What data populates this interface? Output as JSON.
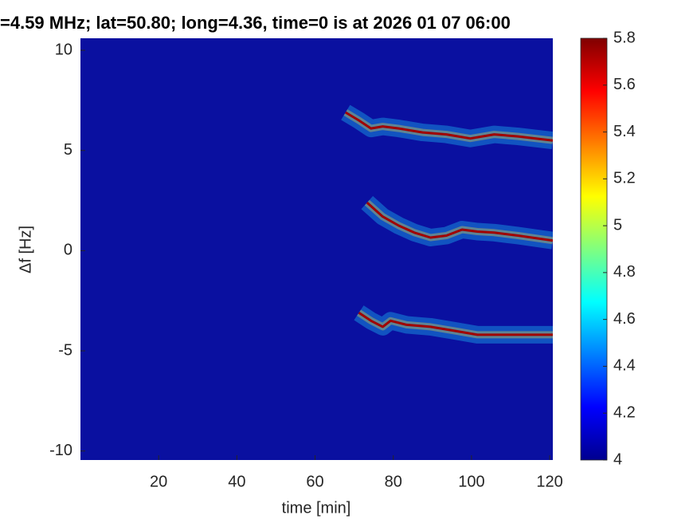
{
  "chart_data": {
    "type": "spectrogram",
    "title": "=4.59 MHz;  lat=50.80; long=4.36, time=0 is at 2026 01 07 06:00",
    "xlabel": "time [min]",
    "ylabel": "Δf [Hz]",
    "xlim": [
      0,
      120.8
    ],
    "xticks": [
      20,
      40,
      60,
      80,
      100,
      120
    ],
    "ylim": [
      -10.45,
      10.6
    ],
    "yticks": [
      -10,
      -5,
      0,
      5,
      10
    ],
    "clim": [
      4,
      5.8
    ],
    "cticks": [
      4,
      4.2,
      4.4,
      4.6,
      4.8,
      5,
      5.2,
      5.4,
      5.6,
      5.8
    ],
    "colormap": "jet",
    "background_color": "#0a10a0",
    "traces": [
      {
        "color": "#a00000",
        "x": [
          67.8,
          71.2,
          74.3,
          77.3,
          81.4,
          87.5,
          93.6,
          99.7,
          105.8,
          111.9,
          120.8
        ],
        "y": [
          6.9,
          6.5,
          6.1,
          6.2,
          6.1,
          5.9,
          5.8,
          5.6,
          5.8,
          5.7,
          5.5
        ]
      },
      {
        "color": "#a00000",
        "x": [
          73.3,
          77.3,
          81.4,
          85.4,
          89.5,
          93.6,
          97.6,
          101.5,
          105.8,
          111.9,
          120.8
        ],
        "y": [
          2.4,
          1.7,
          1.25,
          0.9,
          0.65,
          0.75,
          1.05,
          0.95,
          0.9,
          0.75,
          0.5
        ]
      },
      {
        "color": "#a00000",
        "x": [
          71.2,
          74.3,
          77.3,
          79.3,
          83.4,
          89.5,
          95.6,
          101.5,
          107.8,
          113.9,
          120.8
        ],
        "y": [
          -3.1,
          -3.5,
          -3.8,
          -3.5,
          -3.7,
          -3.8,
          -4.0,
          -4.2,
          -4.2,
          -4.2,
          -4.2
        ]
      }
    ]
  }
}
